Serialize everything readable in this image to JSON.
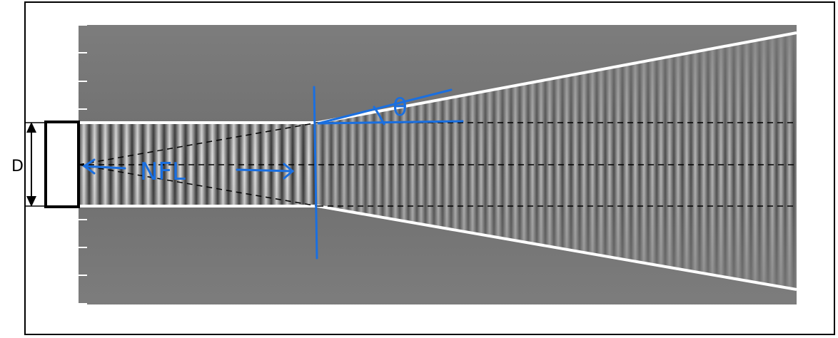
{
  "labels": {
    "diameter": "D",
    "near_field": "NFL",
    "angle": "θ"
  },
  "colors": {
    "background": "#ffffff",
    "field_base": "#7f7f7f",
    "wave_light": "#d9d9d9",
    "wave_dark": "#3a3a3a",
    "beam_edge": "#ffffff",
    "annotation": "#1a6fe0",
    "outline": "#000000"
  }
}
